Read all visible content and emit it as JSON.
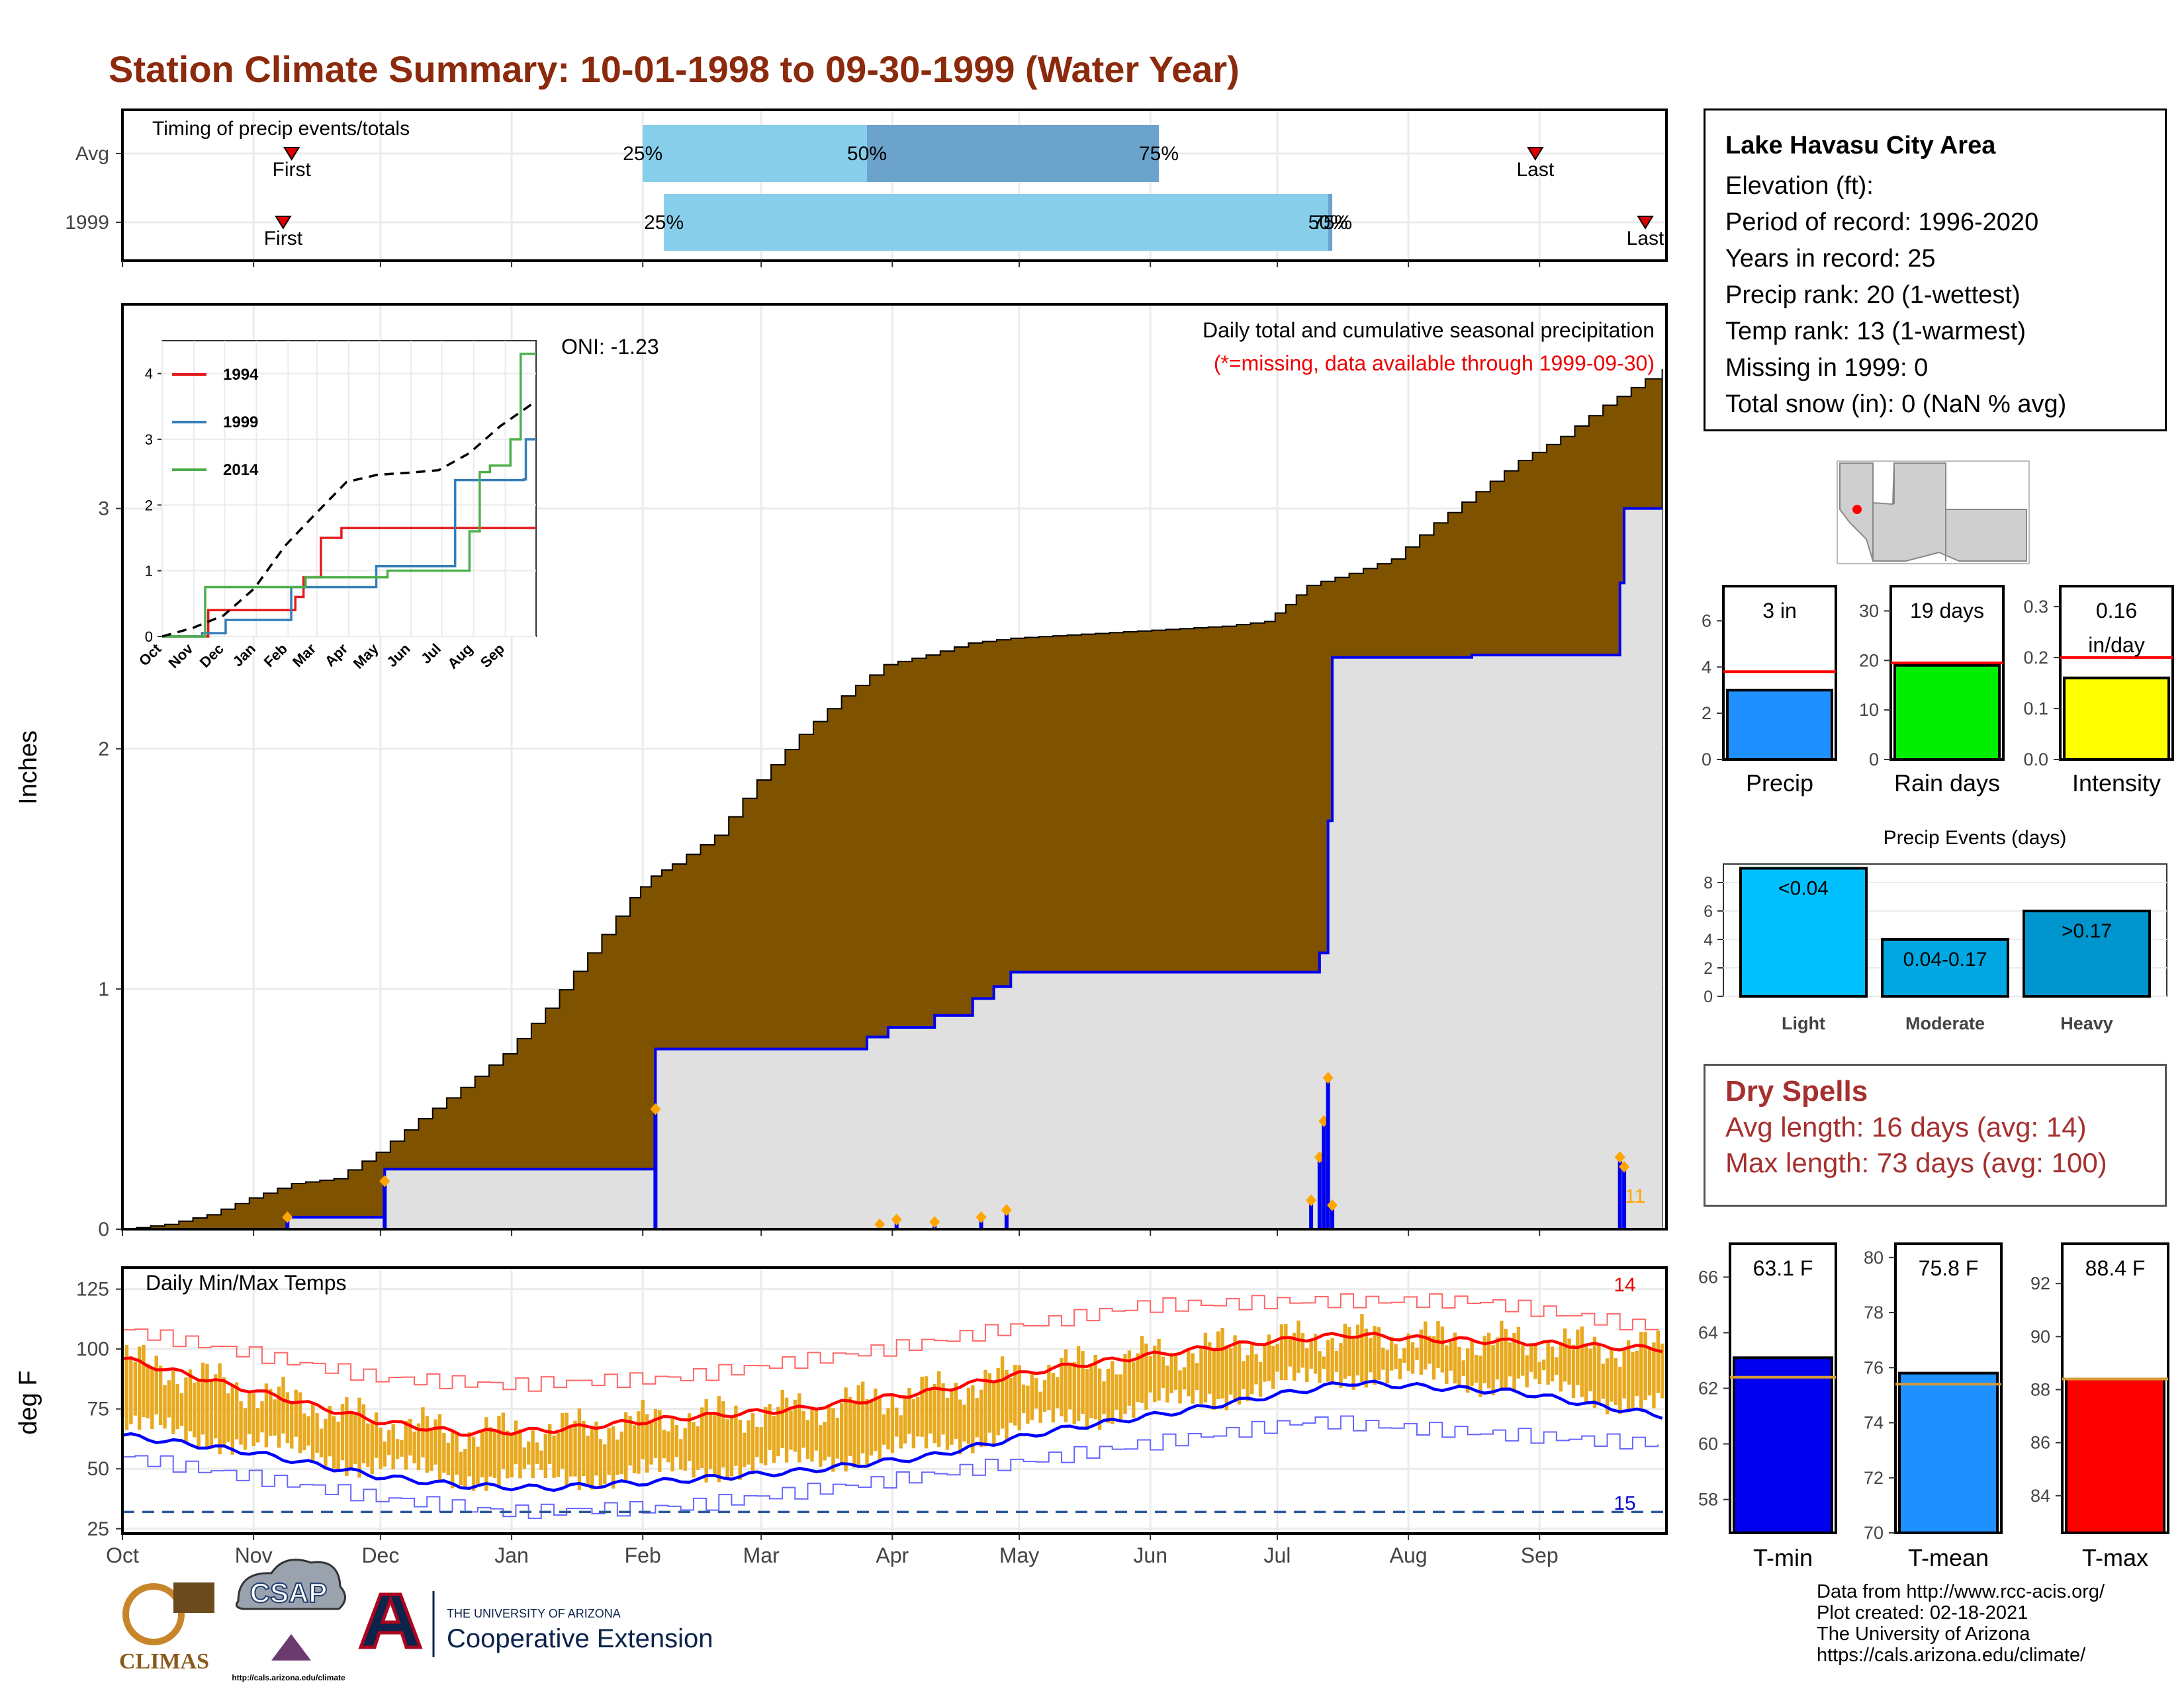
{
  "title": "Station Climate Summary: 10-01-1998 to 09-30-1999 (Water Year)",
  "info": {
    "location": "Lake Havasu City Area",
    "elevation": "Elevation (ft):",
    "period": "Period of record: 1996-2020",
    "years": "Years in record: 25",
    "precip_rank": "Precip rank: 20 (1-wettest)",
    "temp_rank": "Temp rank: 13 (1-warmest)",
    "missing": "Missing in 1999: 0",
    "snow": "Total snow (in): 0 (NaN % avg)"
  },
  "dry_spells": {
    "header": "Dry Spells",
    "avg": "Avg length: 16 days (avg: 14)",
    "max": "Max length: 73 days (avg: 100)"
  },
  "credits": [
    "Data from http://www.rcc-acis.org/",
    "Plot created: 02-18-2021",
    "The University of Arizona",
    "https://cals.arizona.edu/climate/"
  ],
  "logos": {
    "climas": "CLIMAS",
    "csap": "CSAP",
    "csap_url": "http://cals.arizona.edu/climate",
    "ua_small": "THE UNIVERSITY OF ARIZONA",
    "ua_big": "Cooperative Extension"
  },
  "colors": {
    "cum_avg": "#7f5200",
    "cum_obs": "#e0e0e0",
    "obs_line": "#0000ee",
    "title": "#8b2a0c",
    "bar_light": "#87ceeb",
    "bar_dark": "#6ba3cd",
    "tmax": "#ff0000",
    "tmin": "#0000ff",
    "bar_temp": "#e8a91e"
  },
  "chart_data": [
    {
      "type": "bar",
      "title": "Timing of precip events/totals",
      "categories": [
        "Avg",
        "1999"
      ],
      "x_axis": "dates 10-01 to 09-30",
      "rows": [
        {
          "label": "Avg",
          "first": "11-10",
          "q25": "02-01",
          "q50": "03-26",
          "q75": "06-03",
          "last": "08-31",
          "text": {
            "first": "First",
            "q25": "25%",
            "q50": "50%",
            "q75": "75%",
            "last": "Last"
          }
        },
        {
          "label": "1999",
          "first": "11-08",
          "q25": "02-06",
          "q50": "07-13",
          "q75": "07-14",
          "last": "09-26",
          "text": {
            "first": "First",
            "q25": "25%",
            "q50": "50%",
            "q75": "75%",
            "last": "Last"
          }
        }
      ]
    },
    {
      "type": "area",
      "title": "Daily total and cumulative seasonal precipitation",
      "subtitle": "(*=missing, data available through 1999-09-30)",
      "oni": "ONI: -1.23",
      "ylabel": "Inches",
      "ylim": [
        0,
        3.85
      ],
      "yticks": [
        0,
        1,
        2,
        3
      ],
      "xticks": [
        "Oct",
        "Nov",
        "Dec",
        "Jan",
        "Feb",
        "Mar",
        "Apr",
        "May",
        "Jun",
        "Jul",
        "Aug",
        "Sep"
      ],
      "cumulative_avg": [
        [
          0,
          0
        ],
        [
          10,
          0.02
        ],
        [
          20,
          0.06
        ],
        [
          30,
          0.13
        ],
        [
          40,
          0.19
        ],
        [
          50,
          0.21
        ],
        [
          60,
          0.32
        ],
        [
          70,
          0.46
        ],
        [
          80,
          0.59
        ],
        [
          90,
          0.73
        ],
        [
          100,
          0.92
        ],
        [
          110,
          1.15
        ],
        [
          120,
          1.38
        ],
        [
          125,
          1.47
        ],
        [
          130,
          1.52
        ],
        [
          140,
          1.64
        ],
        [
          150,
          1.87
        ],
        [
          160,
          2.06
        ],
        [
          170,
          2.22
        ],
        [
          180,
          2.35
        ],
        [
          190,
          2.39
        ],
        [
          200,
          2.44
        ],
        [
          210,
          2.46
        ],
        [
          220,
          2.47
        ],
        [
          230,
          2.48
        ],
        [
          240,
          2.49
        ],
        [
          250,
          2.5
        ],
        [
          260,
          2.51
        ],
        [
          270,
          2.53
        ],
        [
          275,
          2.6
        ],
        [
          280,
          2.68
        ],
        [
          290,
          2.73
        ],
        [
          300,
          2.79
        ],
        [
          310,
          2.94
        ],
        [
          320,
          3.07
        ],
        [
          330,
          3.2
        ],
        [
          340,
          3.3
        ],
        [
          350,
          3.43
        ],
        [
          360,
          3.54
        ],
        [
          364,
          3.58
        ]
      ],
      "cumulative_obs": [
        [
          0,
          0
        ],
        [
          38,
          0
        ],
        [
          39,
          0.05
        ],
        [
          61,
          0.05
        ],
        [
          62,
          0.25
        ],
        [
          125,
          0.25
        ],
        [
          126,
          0.75
        ],
        [
          175,
          0.75
        ],
        [
          176,
          0.8
        ],
        [
          181,
          0.84
        ],
        [
          192,
          0.89
        ],
        [
          201,
          0.96
        ],
        [
          206,
          1.01
        ],
        [
          210,
          1.07
        ],
        [
          282,
          1.07
        ],
        [
          283,
          1.15
        ],
        [
          285,
          1.7
        ],
        [
          286,
          2.38
        ],
        [
          318,
          2.38
        ],
        [
          319,
          2.39
        ],
        [
          353,
          2.39
        ],
        [
          354,
          2.69
        ],
        [
          355,
          3.0
        ],
        [
          364,
          3.0
        ]
      ],
      "daily_obs": [
        [
          39,
          0.05
        ],
        [
          62,
          0.2
        ],
        [
          126,
          0.5
        ],
        [
          179,
          0.02
        ],
        [
          183,
          0.04
        ],
        [
          192,
          0.03
        ],
        [
          203,
          0.05
        ],
        [
          209,
          0.08
        ],
        [
          281,
          0.12
        ],
        [
          283,
          0.3
        ],
        [
          284,
          0.45
        ],
        [
          285,
          0.63
        ],
        [
          286,
          0.1
        ],
        [
          354,
          0.3
        ],
        [
          355,
          0.26
        ]
      ],
      "missing_label": "11",
      "inset": {
        "type": "line",
        "xticks": [
          "Oct",
          "Nov",
          "Dec",
          "Jan",
          "Feb",
          "Mar",
          "Apr",
          "May",
          "Jun",
          "Jul",
          "Aug",
          "Sep"
        ],
        "yticks": [
          0,
          1,
          2,
          3,
          4
        ],
        "ylim": [
          0,
          4.5
        ],
        "series": [
          {
            "name": "1994",
            "color": "#e41a1c",
            "values": [
              [
                0,
                0
              ],
              [
                40,
                0
              ],
              [
                45,
                0.4
              ],
              [
                108,
                0.4
              ],
              [
                130,
                0.6
              ],
              [
                138,
                0.9
              ],
              [
                155,
                1.5
              ],
              [
                175,
                1.65
              ],
              [
                365,
                1.65
              ]
            ]
          },
          {
            "name": "1999",
            "color": "#377eb8",
            "values": [
              [
                0,
                0
              ],
              [
                38,
                0
              ],
              [
                39,
                0.05
              ],
              [
                61,
                0.05
              ],
              [
                62,
                0.25
              ],
              [
                125,
                0.25
              ],
              [
                126,
                0.75
              ],
              [
                209,
                1.07
              ],
              [
                281,
                1.07
              ],
              [
                286,
                2.38
              ],
              [
                353,
                2.39
              ],
              [
                355,
                3.0
              ],
              [
                365,
                3.0
              ]
            ]
          },
          {
            "name": "2014",
            "color": "#4daf4a",
            "values": [
              [
                0,
                0
              ],
              [
                40,
                0
              ],
              [
                42,
                0.75
              ],
              [
                130,
                0.75
              ],
              [
                140,
                0.9
              ],
              [
                170,
                0.9
              ],
              [
                220,
                1.0
              ],
              [
                290,
                1.0
              ],
              [
                300,
                1.6
              ],
              [
                310,
                2.5
              ],
              [
                320,
                2.6
              ],
              [
                340,
                3.0
              ],
              [
                350,
                4.3
              ],
              [
                365,
                4.3
              ]
            ]
          },
          {
            "name": "avg",
            "color": "#000000",
            "values": [
              [
                0,
                0
              ],
              [
                30,
                0.13
              ],
              [
                60,
                0.32
              ],
              [
                90,
                0.73
              ],
              [
                120,
                1.38
              ],
              [
                150,
                1.87
              ],
              [
                180,
                2.35
              ],
              [
                210,
                2.46
              ],
              [
                240,
                2.49
              ],
              [
                270,
                2.53
              ],
              [
                300,
                2.79
              ],
              [
                330,
                3.2
              ],
              [
                365,
                3.58
              ]
            ]
          }
        ]
      }
    },
    {
      "type": "bar",
      "title": "Precip",
      "values": [
        3.0
      ],
      "avg": 3.8,
      "ylim": [
        0,
        7.5
      ],
      "yticks": [
        0,
        2,
        4,
        6
      ],
      "label": "3 in",
      "color": "#1e90ff"
    },
    {
      "type": "bar",
      "title": "Rain days",
      "values": [
        19
      ],
      "avg": 19.5,
      "ylim": [
        0,
        35
      ],
      "yticks": [
        0,
        10,
        20,
        30
      ],
      "label": "19 days",
      "color": "#00ee00"
    },
    {
      "type": "bar",
      "title": "Intensity",
      "values": [
        0.16
      ],
      "avg": 0.2,
      "ylim": [
        0,
        0.34
      ],
      "yticks": [
        "0.0",
        "0.1",
        "0.2",
        "0.3"
      ],
      "label": [
        "0.16",
        "in/day"
      ],
      "color": "#ffff00"
    },
    {
      "type": "bar",
      "title": "Precip Events (days)",
      "categories": [
        "Light",
        "Moderate",
        "Heavy"
      ],
      "values": [
        9,
        4,
        6
      ],
      "labels": [
        "<0.04",
        "0.04-0.17",
        ">0.17"
      ],
      "ylim": [
        0,
        9.3
      ],
      "yticks": [
        0,
        2,
        4,
        6,
        8
      ],
      "colors": [
        "#00bfff",
        "#00a7e1",
        "#0095cc"
      ]
    },
    {
      "type": "line",
      "title": "Daily Min/Max Temps",
      "ylabel": "deg F",
      "ylim": [
        23,
        134
      ],
      "yticks": [
        25,
        50,
        75,
        100,
        125
      ],
      "xticks": [
        "Oct",
        "Nov",
        "Dec",
        "Jan",
        "Feb",
        "Mar",
        "Apr",
        "May",
        "Jun",
        "Jul",
        "Aug",
        "Sep"
      ],
      "hot_label": "14",
      "cold_label": "15",
      "freeze_line": 32,
      "avg_tmax": [
        [
          0,
          96
        ],
        [
          30,
          83
        ],
        [
          60,
          70
        ],
        [
          80,
          65
        ],
        [
          100,
          66
        ],
        [
          130,
          71
        ],
        [
          160,
          75
        ],
        [
          190,
          82
        ],
        [
          220,
          92
        ],
        [
          250,
          99
        ],
        [
          270,
          103
        ],
        [
          290,
          106
        ],
        [
          310,
          104
        ],
        [
          330,
          103
        ],
        [
          350,
          101
        ],
        [
          365,
          100
        ]
      ],
      "avg_tmin": [
        [
          0,
          64
        ],
        [
          30,
          57
        ],
        [
          60,
          47
        ],
        [
          80,
          43
        ],
        [
          100,
          42
        ],
        [
          130,
          45
        ],
        [
          160,
          49
        ],
        [
          190,
          55
        ],
        [
          220,
          66
        ],
        [
          250,
          74
        ],
        [
          270,
          80
        ],
        [
          290,
          86
        ],
        [
          310,
          84
        ],
        [
          330,
          82
        ],
        [
          350,
          76
        ],
        [
          365,
          72
        ]
      ],
      "record_max": [
        [
          0,
          108
        ],
        [
          60,
          88
        ],
        [
          90,
          85
        ],
        [
          130,
          88
        ],
        [
          180,
          100
        ],
        [
          240,
          118
        ],
        [
          280,
          120
        ],
        [
          320,
          120
        ],
        [
          365,
          108
        ]
      ],
      "record_min": [
        [
          0,
          55
        ],
        [
          60,
          38
        ],
        [
          90,
          32
        ],
        [
          130,
          34
        ],
        [
          180,
          45
        ],
        [
          240,
          60
        ],
        [
          280,
          70
        ],
        [
          320,
          65
        ],
        [
          365,
          60
        ]
      ]
    },
    {
      "type": "bar",
      "title": "T-min",
      "values": [
        63.1
      ],
      "avg": 62.4,
      "ylim": [
        56.8,
        67.2
      ],
      "yticks": [
        58,
        60,
        62,
        64,
        66
      ],
      "label": "63.1 F",
      "color": "#0000ee"
    },
    {
      "type": "bar",
      "title": "T-mean",
      "values": [
        75.8
      ],
      "avg": 75.4,
      "ylim": [
        70,
        80.5
      ],
      "yticks": [
        70,
        72,
        74,
        76,
        78,
        80
      ],
      "label": "75.8 F",
      "color": "#1e90ff"
    },
    {
      "type": "bar",
      "title": "T-max",
      "values": [
        88.4
      ],
      "avg": 88.4,
      "ylim": [
        82.6,
        93.5
      ],
      "yticks": [
        84,
        86,
        88,
        90,
        92
      ],
      "label": "88.4 F",
      "color": "#ff0000"
    }
  ]
}
